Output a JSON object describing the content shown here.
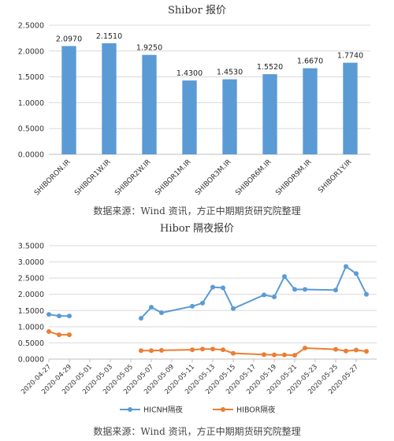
{
  "charts": {
    "top_title": "Shibor 报价",
    "bottom_title": "Hibor 隔夜报价",
    "source_text": "数据来源：Wind 资讯，方正中期期货研究院整理"
  },
  "colors": {
    "bar": "#5b9bd5",
    "hicnh": "#5b9bd5",
    "hibor": "#ed7d31",
    "grid": "#d9d9d9",
    "axis": "#bfbfbf"
  },
  "chart_data": [
    {
      "type": "bar",
      "title": "Shibor 报价",
      "categories": [
        "SHIBORON.IR",
        "SHIBOR1W.IR",
        "SHIBOR2W.IR",
        "SHIBOR1M.IR",
        "SHIBOR3M.IR",
        "SHIBOR6M.IR",
        "SHIBOR9M.IR",
        "SHIBOR1Y.IR"
      ],
      "values": [
        2.097,
        2.151,
        1.925,
        1.43,
        1.453,
        1.552,
        1.667,
        1.774
      ],
      "value_labels": [
        "2.0970",
        "2.1510",
        "1.9250",
        "1.4300",
        "1.4530",
        "1.5520",
        "1.6670",
        "1.7740"
      ],
      "ylim": [
        0,
        2.5
      ],
      "yticks": [
        "0.0000",
        "0.5000",
        "1.0000",
        "1.5000",
        "2.0000",
        "2.5000"
      ],
      "grid": true
    },
    {
      "type": "line",
      "title": "Hibor 隔夜报价",
      "x_start": "2020-04-27",
      "x_end": "2020-05-29",
      "xticks": [
        "2020-04-27",
        "2020-04-29",
        "2020-05-01",
        "2020-05-03",
        "2020-05-05",
        "2020-05-07",
        "2020-05-09",
        "2020-05-11",
        "2020-05-13",
        "2020-05-15",
        "2020-05-17",
        "2020-05-19",
        "2020-05-21",
        "2020-05-23",
        "2020-05-25",
        "2020-05-27"
      ],
      "ylim": [
        0,
        3.5
      ],
      "yticks": [
        "0.0000",
        "0.5000",
        "1.0000",
        "1.5000",
        "2.0000",
        "2.5000",
        "3.0000",
        "3.5000"
      ],
      "legend_position": "bottom",
      "grid": true,
      "series": [
        {
          "name": "HICNH隔夜",
          "points": [
            {
              "x": "2020-04-27",
              "y": 1.38
            },
            {
              "x": "2020-04-28",
              "y": 1.33
            },
            {
              "x": "2020-04-29",
              "y": 1.33
            },
            {
              "x": null,
              "y": null
            },
            {
              "x": "2020-05-06",
              "y": 1.26
            },
            {
              "x": "2020-05-07",
              "y": 1.6
            },
            {
              "x": "2020-05-08",
              "y": 1.43
            },
            {
              "x": "2020-05-11",
              "y": 1.63
            },
            {
              "x": "2020-05-12",
              "y": 1.73
            },
            {
              "x": "2020-05-13",
              "y": 2.22
            },
            {
              "x": "2020-05-14",
              "y": 2.2
            },
            {
              "x": "2020-05-15",
              "y": 1.56
            },
            {
              "x": "2020-05-18",
              "y": 1.98
            },
            {
              "x": "2020-05-19",
              "y": 1.92
            },
            {
              "x": "2020-05-20",
              "y": 2.55
            },
            {
              "x": "2020-05-21",
              "y": 2.15
            },
            {
              "x": "2020-05-22",
              "y": 2.15
            },
            {
              "x": "2020-05-25",
              "y": 2.13
            },
            {
              "x": "2020-05-26",
              "y": 2.86
            },
            {
              "x": "2020-05-27",
              "y": 2.64
            },
            {
              "x": "2020-05-28",
              "y": 2.0
            }
          ]
        },
        {
          "name": "HIBOR隔夜",
          "points": [
            {
              "x": "2020-04-27",
              "y": 0.85
            },
            {
              "x": "2020-04-28",
              "y": 0.75
            },
            {
              "x": "2020-04-29",
              "y": 0.75
            },
            {
              "x": null,
              "y": null
            },
            {
              "x": "2020-05-06",
              "y": 0.26
            },
            {
              "x": "2020-05-07",
              "y": 0.26
            },
            {
              "x": "2020-05-08",
              "y": 0.27
            },
            {
              "x": "2020-05-11",
              "y": 0.29
            },
            {
              "x": "2020-05-12",
              "y": 0.31
            },
            {
              "x": "2020-05-13",
              "y": 0.31
            },
            {
              "x": "2020-05-14",
              "y": 0.29
            },
            {
              "x": "2020-05-15",
              "y": 0.18
            },
            {
              "x": "2020-05-18",
              "y": 0.14
            },
            {
              "x": "2020-05-19",
              "y": 0.13
            },
            {
              "x": "2020-05-20",
              "y": 0.13
            },
            {
              "x": "2020-05-21",
              "y": 0.12
            },
            {
              "x": "2020-05-22",
              "y": 0.34
            },
            {
              "x": "2020-05-25",
              "y": 0.3
            },
            {
              "x": "2020-05-26",
              "y": 0.25
            },
            {
              "x": "2020-05-27",
              "y": 0.28
            },
            {
              "x": "2020-05-28",
              "y": 0.24
            }
          ]
        }
      ]
    }
  ]
}
